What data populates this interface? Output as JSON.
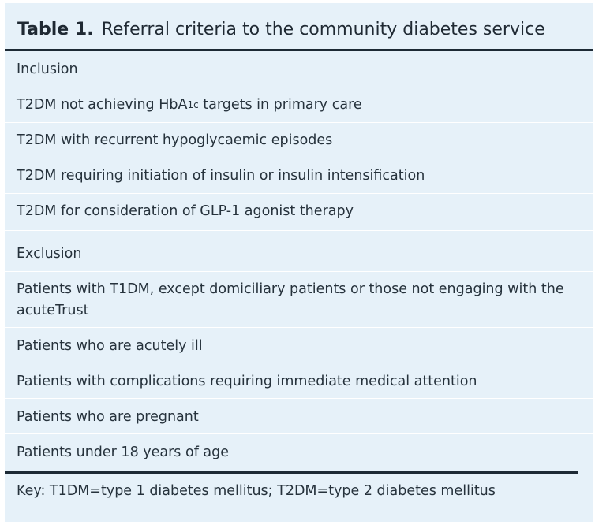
{
  "table": {
    "number": "Table 1.",
    "title": "Referral criteria to the community diabetes service",
    "inclusion_heading": "Inclusion",
    "inclusion_items": [
      {
        "before": "T2DM not achieving HbA",
        "sub": "1c",
        "after": " targets in primary care"
      },
      {
        "text": "T2DM with recurrent hypoglycaemic episodes"
      },
      {
        "text": "T2DM requiring initiation of insulin or insulin intensification"
      },
      {
        "text": "T2DM for consideration of GLP-1 agonist therapy"
      }
    ],
    "exclusion_heading": "Exclusion",
    "exclusion_items": [
      "Patients with T1DM, except domiciliary patients or those not engaging with the acuteTrust",
      "Patients who are acutely ill",
      "Patients with complications requiring immediate medical attention",
      "Patients who are pregnant",
      "Patients under 18 years of age"
    ],
    "key": "Key: T1DM=type 1 diabetes mellitus; T2DM=type 2 diabetes mellitus"
  }
}
